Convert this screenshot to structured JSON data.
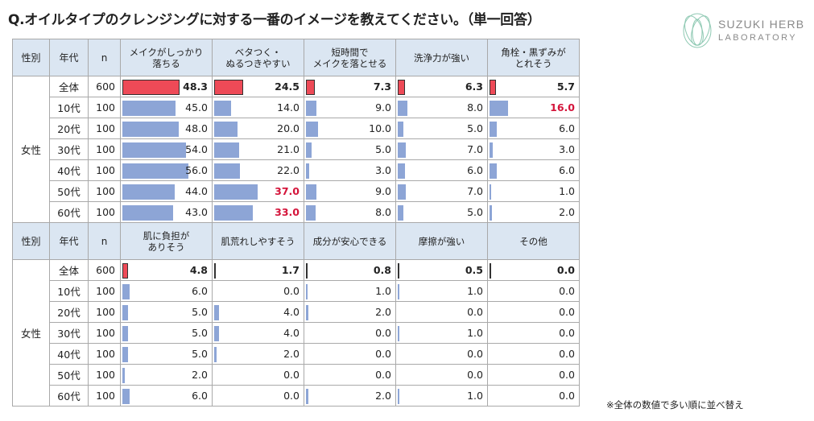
{
  "title": "Q.オイルタイプのクレンジングに対する一番のイメージを教えてください。（単一回答）",
  "logo": {
    "line1": "SUZUKI HERB",
    "line2": "LABORATORY",
    "icon": "leaf-circle-icon"
  },
  "footnote": "※全体の数値で多い順に並べ替え",
  "headers": {
    "gender": "性別",
    "age": "年代",
    "n": "n"
  },
  "segment_label": "女性",
  "colors": {
    "total_bar": "#ee4a57",
    "bar": "#8da5d6",
    "highlight": "#d4143a",
    "header_bg": "#dbe6f2"
  },
  "chart_data": [
    {
      "type": "table",
      "columns": [
        "メイクがしっかり\n落ちる",
        "ベタつく・\nぬるつきやすい",
        "短時間で\nメイクを落とせる",
        "洗浄力が強い",
        "角栓・黒ずみが\nとれそう"
      ],
      "rows": [
        {
          "age": "全体",
          "n": "600",
          "values": [
            "48.3",
            "24.5",
            "7.3",
            "6.3",
            "5.7"
          ],
          "highlight": [
            false,
            false,
            false,
            false,
            false
          ]
        },
        {
          "age": "10代",
          "n": "100",
          "values": [
            "45.0",
            "14.0",
            "9.0",
            "8.0",
            "16.0"
          ],
          "highlight": [
            false,
            false,
            false,
            false,
            true
          ]
        },
        {
          "age": "20代",
          "n": "100",
          "values": [
            "48.0",
            "20.0",
            "10.0",
            "5.0",
            "6.0"
          ],
          "highlight": [
            false,
            false,
            false,
            false,
            false
          ]
        },
        {
          "age": "30代",
          "n": "100",
          "values": [
            "54.0",
            "21.0",
            "5.0",
            "7.0",
            "3.0"
          ],
          "highlight": [
            false,
            false,
            false,
            false,
            false
          ]
        },
        {
          "age": "40代",
          "n": "100",
          "values": [
            "56.0",
            "22.0",
            "3.0",
            "6.0",
            "6.0"
          ],
          "highlight": [
            false,
            false,
            false,
            false,
            false
          ]
        },
        {
          "age": "50代",
          "n": "100",
          "values": [
            "44.0",
            "37.0",
            "9.0",
            "7.0",
            "1.0"
          ],
          "highlight": [
            false,
            true,
            false,
            false,
            false
          ]
        },
        {
          "age": "60代",
          "n": "100",
          "values": [
            "43.0",
            "33.0",
            "8.0",
            "5.0",
            "2.0"
          ],
          "highlight": [
            false,
            true,
            false,
            false,
            false
          ]
        }
      ]
    },
    {
      "type": "table",
      "columns": [
        "肌に負担が\nありそう",
        "肌荒れしやすそう",
        "成分が安心できる",
        "摩擦が強い",
        "その他"
      ],
      "rows": [
        {
          "age": "全体",
          "n": "600",
          "values": [
            "4.8",
            "1.7",
            "0.8",
            "0.5",
            "0.0"
          ],
          "highlight": [
            false,
            false,
            false,
            false,
            false
          ]
        },
        {
          "age": "10代",
          "n": "100",
          "values": [
            "6.0",
            "0.0",
            "1.0",
            "1.0",
            "0.0"
          ],
          "highlight": [
            false,
            false,
            false,
            false,
            false
          ]
        },
        {
          "age": "20代",
          "n": "100",
          "values": [
            "5.0",
            "4.0",
            "2.0",
            "0.0",
            "0.0"
          ],
          "highlight": [
            false,
            false,
            false,
            false,
            false
          ]
        },
        {
          "age": "30代",
          "n": "100",
          "values": [
            "5.0",
            "4.0",
            "0.0",
            "1.0",
            "0.0"
          ],
          "highlight": [
            false,
            false,
            false,
            false,
            false
          ]
        },
        {
          "age": "40代",
          "n": "100",
          "values": [
            "5.0",
            "2.0",
            "0.0",
            "0.0",
            "0.0"
          ],
          "highlight": [
            false,
            false,
            false,
            false,
            false
          ]
        },
        {
          "age": "50代",
          "n": "100",
          "values": [
            "2.0",
            "0.0",
            "0.0",
            "0.0",
            "0.0"
          ],
          "highlight": [
            false,
            false,
            false,
            false,
            false
          ]
        },
        {
          "age": "60代",
          "n": "100",
          "values": [
            "6.0",
            "0.0",
            "2.0",
            "1.0",
            "0.0"
          ],
          "highlight": [
            false,
            false,
            false,
            false,
            false
          ]
        }
      ]
    }
  ]
}
